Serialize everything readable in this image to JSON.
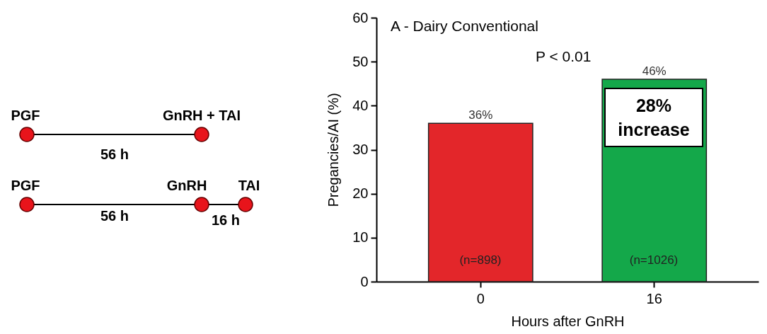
{
  "chart_data": {
    "type": "bar",
    "ylabel": "Pregancies/AI (%)",
    "xlabel": "Hours after GnRH",
    "categories": [
      "0",
      "16"
    ],
    "values": [
      36,
      46
    ],
    "colors": [
      "#e3262a",
      "#14a84a"
    ],
    "value_labels": [
      "36%",
      "46%"
    ],
    "ylim": [
      0,
      60
    ],
    "yticks": [
      0,
      10,
      20,
      30,
      40,
      50,
      60
    ],
    "grid": false,
    "annotations": [
      "PGF",
      "GnRH + TAI",
      "56 h",
      "PGF",
      "GnRH",
      "TAI",
      "56 h",
      "16 h",
      "A - Dairy Conventional",
      "P < 0.01",
      "(n=898)",
      "(n=1026)",
      "28% increase"
    ]
  }
}
